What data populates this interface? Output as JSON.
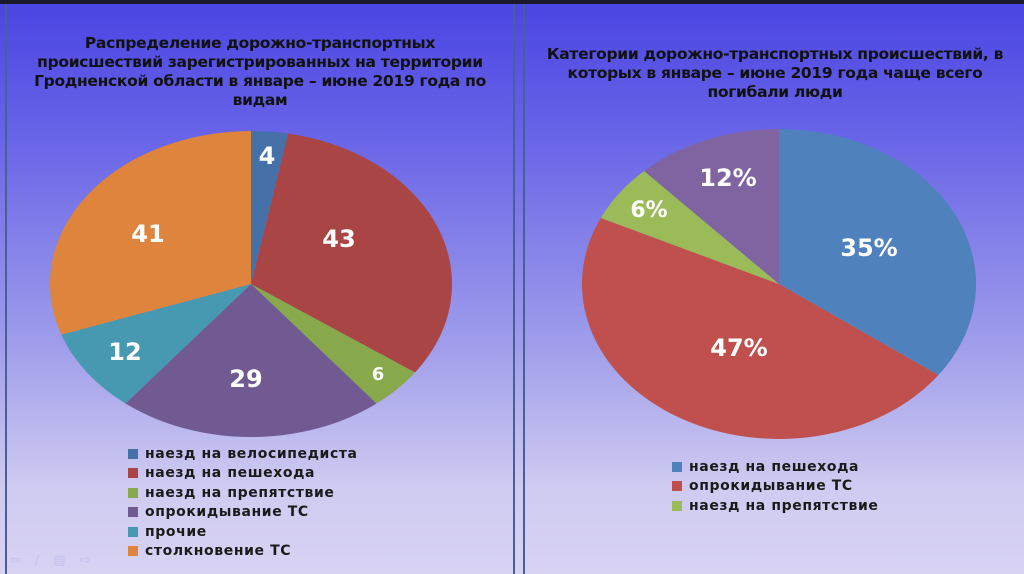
{
  "slide": {
    "background_colors": {
      "top": "#4a44e2",
      "bottom": "#d8d3f3"
    },
    "nav_icons": [
      "back-arrow-icon",
      "pen-icon",
      "menu-icon",
      "forward-arrow-icon"
    ]
  },
  "left_chart": {
    "title": "Распределение дорожно-транспортных происшествий зарегистрированных на территории Гродненской области в январе – июне 2019 года по видам",
    "title_lines": [
      "Распределение дорожно-транспортных",
      "происшествий зарегистрированных на территории",
      "Гродненской области в январе – июне 2019 года по",
      "видам"
    ],
    "legend": [
      {
        "label": "наезд на велосипедиста",
        "color": "#4670a8"
      },
      {
        "label": "наезд на пешехода",
        "color": "#a94545"
      },
      {
        "label": "наезд на препятствие",
        "color": "#87a84b"
      },
      {
        "label": "опрокидывание ТС",
        "color": "#715a92"
      },
      {
        "label": "прочие",
        "color": "#4699b0"
      },
      {
        "label": "столкновение ТС",
        "color": "#de843c"
      }
    ]
  },
  "right_chart": {
    "title": "Категории дорожно-транспортных происшествий, в которых в январе – июне 2019 года чаще всего погибали люди",
    "title_lines": [
      "Категории дорожно-транспортных происшествий, в",
      "которых в январе – июне 2019 года чаще всего",
      "погибали люди"
    ],
    "legend": [
      {
        "label": "наезд на пешехода",
        "color": "#4f81bd"
      },
      {
        "label": "опрокидывание ТС",
        "color": "#c0504d"
      },
      {
        "label": "наезд на препятствие",
        "color": "#9bbb59"
      }
    ]
  },
  "chart_data": [
    {
      "type": "pie",
      "title": "Распределение дорожно-транспортных происшествий зарегистрированных на территории Гродненской области в январе – июне 2019 года по видам",
      "categories": [
        "наезд на велосипедиста",
        "наезд на пешехода",
        "наезд на препятствие",
        "опрокидывание ТС",
        "прочие",
        "столкновение ТС"
      ],
      "values": [
        4,
        43,
        6,
        29,
        12,
        41
      ],
      "data_labels": [
        "4",
        "43",
        "6",
        "29",
        "12",
        "41"
      ],
      "colors": [
        "#4670a8",
        "#a94545",
        "#87a84b",
        "#715a92",
        "#4699b0",
        "#de843c"
      ],
      "legend_position": "bottom",
      "start_angle": "12 o'clock, clockwise"
    },
    {
      "type": "pie",
      "title": "Категории дорожно-транспортных происшествий, в которых в январе – июне 2019 года чаще всего погибали люди",
      "categories": [
        "наезд на пешехода",
        "опрокидывание ТС",
        "наезд на препятствие",
        "(unlabeled)"
      ],
      "values": [
        35,
        47,
        6,
        12
      ],
      "data_labels": [
        "35%",
        "47%",
        "6%",
        "12%"
      ],
      "colors": [
        "#4f81bd",
        "#c0504d",
        "#9bbb59",
        "#8064a2"
      ],
      "legend_position": "bottom",
      "start_angle": "12 o'clock, clockwise"
    }
  ]
}
